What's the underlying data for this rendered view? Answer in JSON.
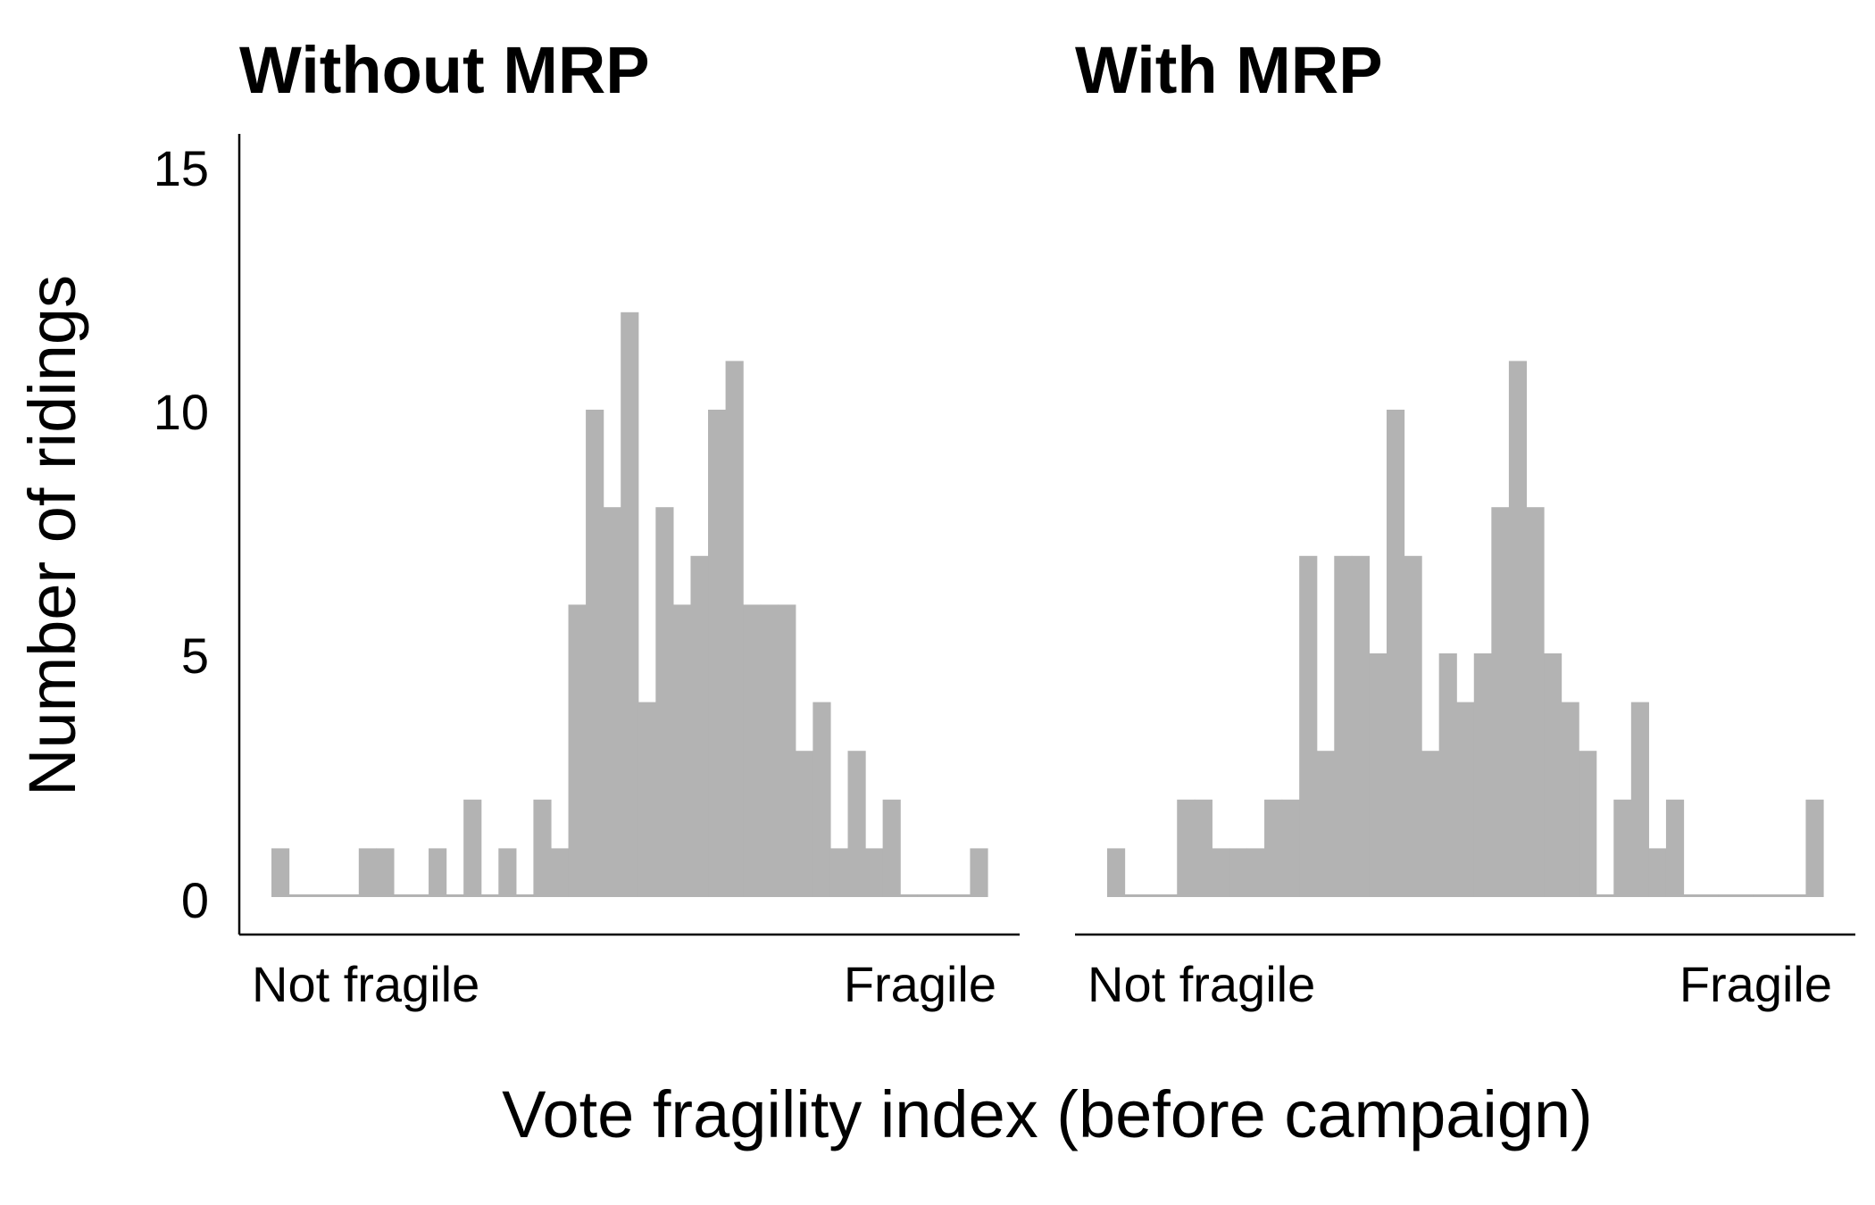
{
  "colors": {
    "bar": "#b3b3b3",
    "axis": "#000000",
    "text": "#000000",
    "background": "#ffffff"
  },
  "shared": {
    "ylabel": "Number of ridings",
    "xlabel": "Vote fragility index (before campaign)",
    "yticks": [
      "0",
      "5",
      "10",
      "15"
    ]
  },
  "chart_data": [
    {
      "type": "bar",
      "title": "Without MRP",
      "x_tick_labels": [
        "Not fragile",
        "Fragile"
      ],
      "ylim": [
        0,
        15.5
      ],
      "grid": false,
      "values": [
        1,
        0,
        0,
        0,
        0,
        1,
        1,
        0,
        0,
        1,
        0,
        2,
        0,
        1,
        0,
        2,
        1,
        6,
        10,
        8,
        12,
        4,
        8,
        6,
        7,
        10,
        11,
        6,
        6,
        6,
        3,
        4,
        1,
        3,
        1,
        2,
        0,
        0,
        0,
        0,
        1
      ]
    },
    {
      "type": "bar",
      "title": "With MRP",
      "x_tick_labels": [
        "Not fragile",
        "Fragile"
      ],
      "ylim": [
        0,
        15.5
      ],
      "grid": false,
      "values": [
        1,
        0,
        0,
        0,
        2,
        2,
        1,
        1,
        1,
        2,
        2,
        7,
        3,
        7,
        7,
        5,
        10,
        7,
        3,
        5,
        4,
        5,
        8,
        11,
        8,
        5,
        4,
        3,
        0,
        2,
        4,
        1,
        2,
        0,
        0,
        0,
        0,
        0,
        0,
        0,
        2
      ]
    }
  ]
}
